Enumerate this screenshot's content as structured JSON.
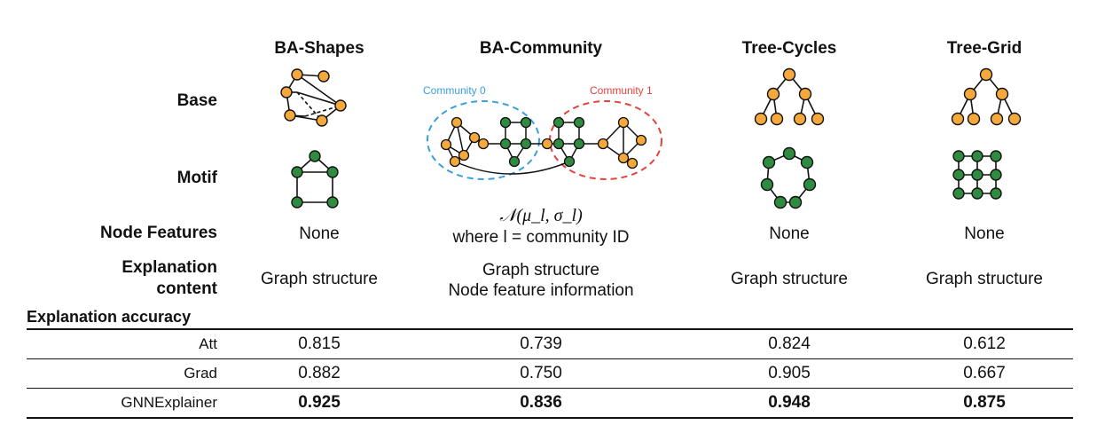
{
  "columns": [
    {
      "name": "BA-Shapes",
      "node_features": "None",
      "explanation_content": [
        "Graph structure"
      ]
    },
    {
      "name": "BA-Community",
      "node_features_math": "𝒩(μ_l, σ_l)",
      "node_features": "where l = community ID",
      "explanation_content": [
        "Graph structure",
        "Node feature information"
      ]
    },
    {
      "name": "Tree-Cycles",
      "node_features": "None",
      "explanation_content": [
        "Graph structure"
      ]
    },
    {
      "name": "Tree-Grid",
      "node_features": "None",
      "explanation_content": [
        "Graph structure"
      ]
    }
  ],
  "row_labels": {
    "base": "Base",
    "motif": "Motif",
    "node_features": "Node Features",
    "explanation_content_1": "Explanation",
    "explanation_content_2": "content",
    "explanation_accuracy": "Explanation accuracy"
  },
  "community_labels": [
    "Community 0",
    "Community 1"
  ],
  "accuracy": [
    {
      "method": "Att",
      "values": [
        "0.815",
        "0.739",
        "0.824",
        "0.612"
      ]
    },
    {
      "method": "Grad",
      "values": [
        "0.882",
        "0.750",
        "0.905",
        "0.667"
      ]
    },
    {
      "method": "GNNExplainer",
      "values": [
        "0.925",
        "0.836",
        "0.948",
        "0.875"
      ],
      "bold": true
    }
  ],
  "colors": {
    "orange_node": "#f5a93c",
    "green_node": "#2e8b3f",
    "community0": "#3aa0dc",
    "community1": "#e2433d"
  }
}
